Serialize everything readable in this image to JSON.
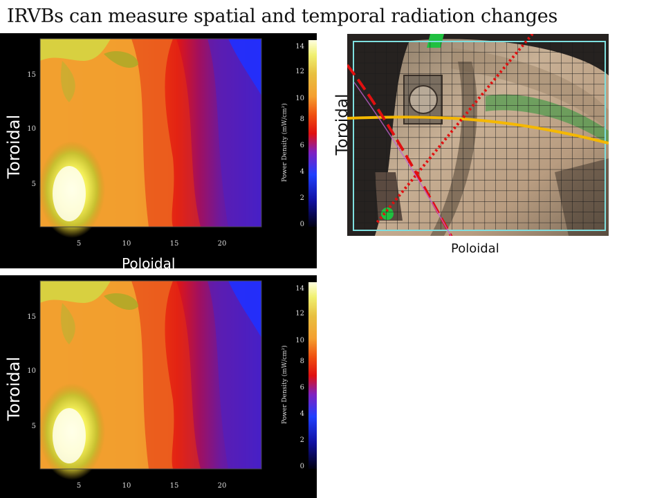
{
  "title": "IRVBs can measure spatial and temporal radiation changes",
  "plots": [
    {
      "y_label": "Toroidal",
      "x_label": "Poloidal",
      "x_ticks": [
        "5",
        "10",
        "15",
        "20"
      ],
      "y_ticks": [
        "5",
        "10",
        "15"
      ],
      "colorbar_label": "Power Density (mW/cm²)",
      "colorbar_ticks": [
        "0",
        "2",
        "4",
        "6",
        "8",
        "10",
        "12",
        "14"
      ]
    },
    {
      "y_label": "Toroidal",
      "x_ticks": [
        "5",
        "10",
        "15",
        "20"
      ],
      "y_ticks": [
        "5",
        "10",
        "15"
      ],
      "colorbar_label": "Power Density (mW/cm²)",
      "colorbar_ticks": [
        "0",
        "2",
        "4",
        "6",
        "8",
        "10",
        "12",
        "14"
      ]
    }
  ],
  "camera": {
    "toroidal_label": "Toroidal",
    "poloidal_label": "Poloidal",
    "colors": {
      "grid_box": "#7fe0e0",
      "toroidal_line": "#f5b800",
      "poloidal_lines": "#e01010"
    }
  }
}
